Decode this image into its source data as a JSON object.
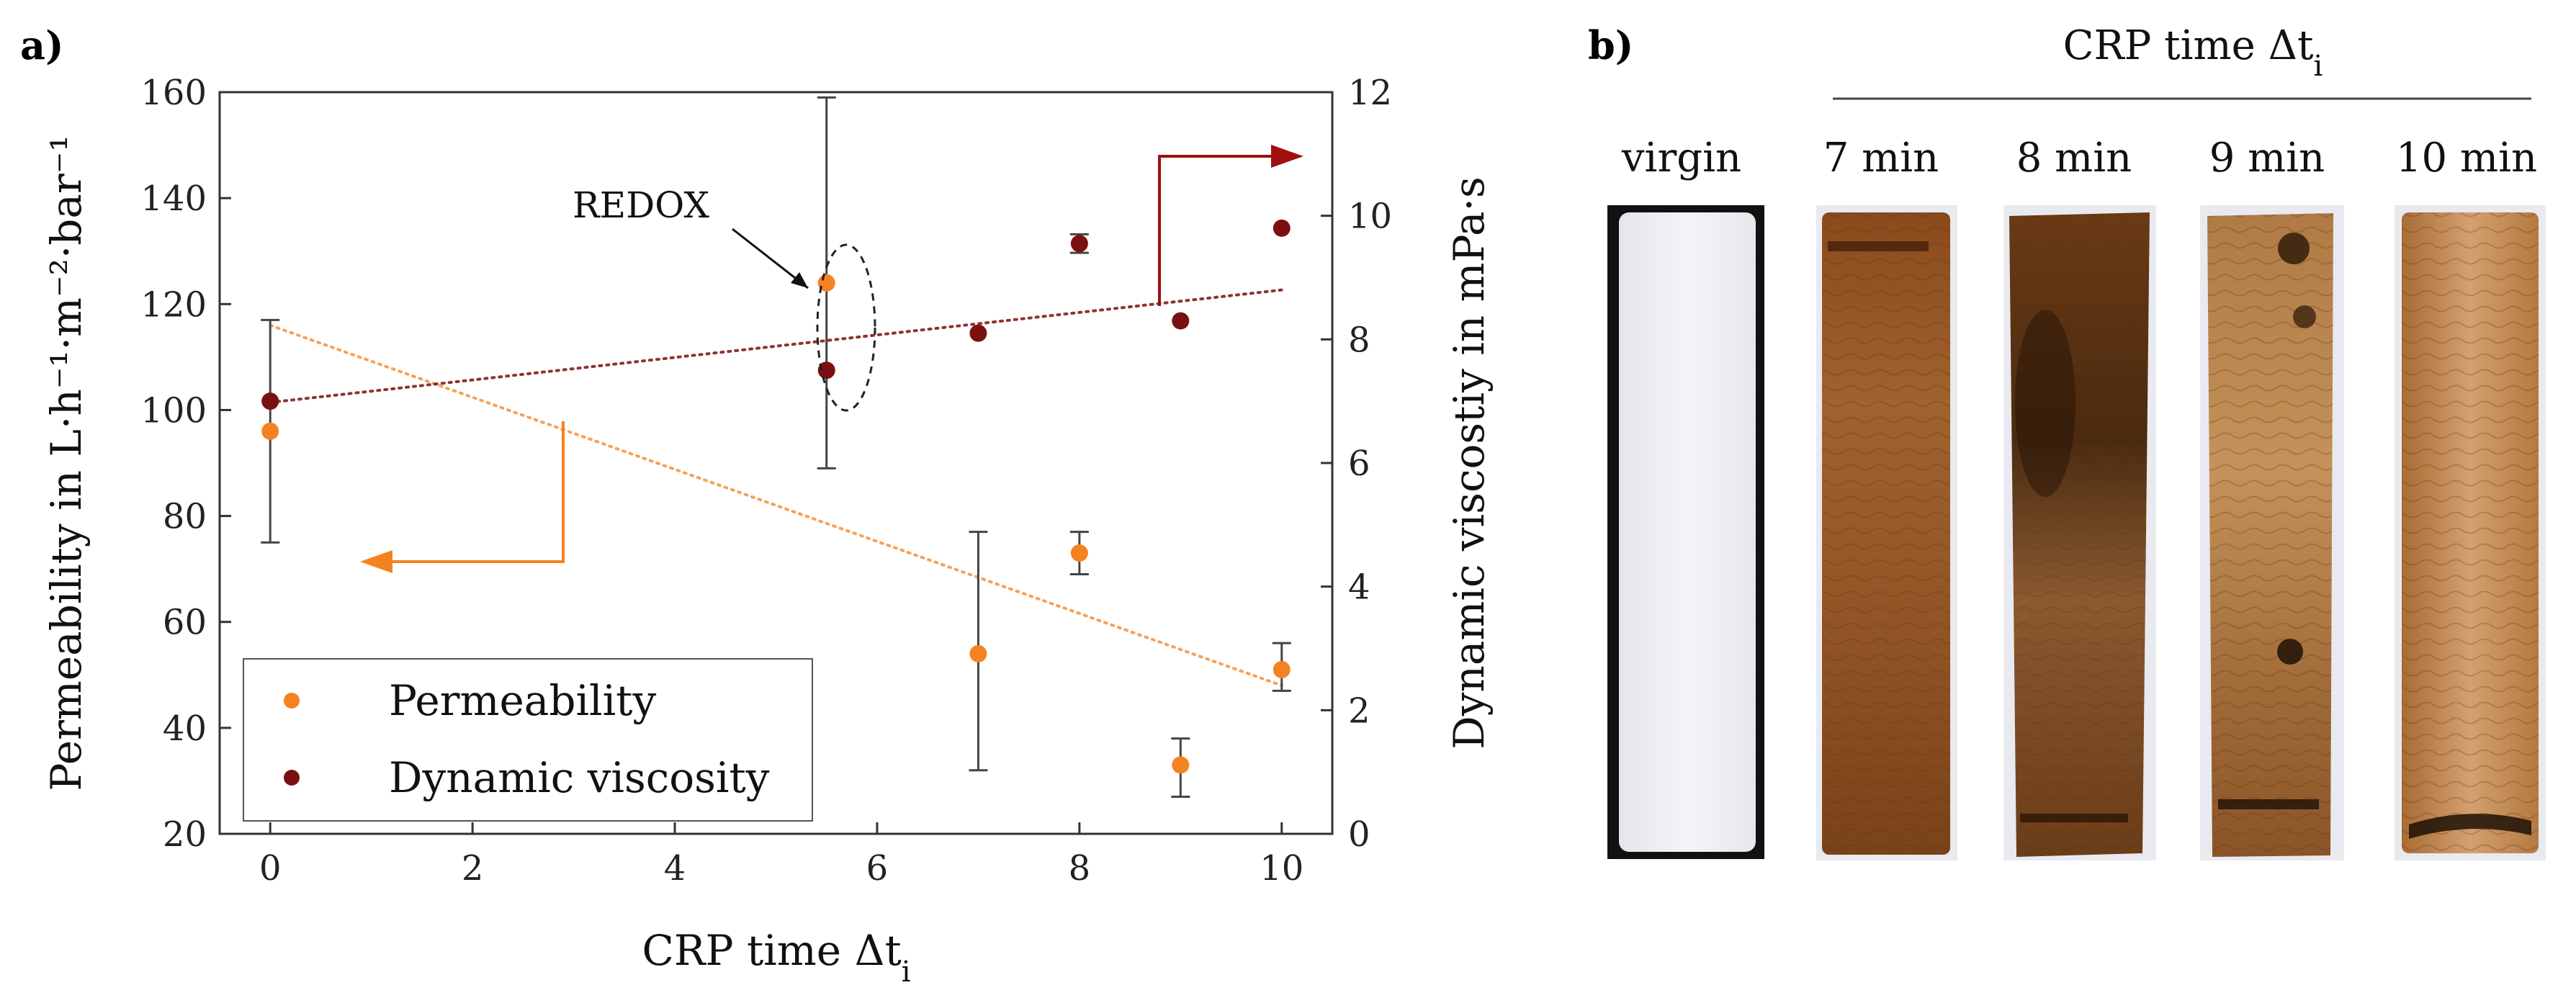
{
  "panel_a": {
    "label": "a)",
    "left_axis_title": "Permeability in L·h⁻¹·m⁻²·bar⁻¹",
    "right_axis_title": "Dynamic viscostiy in mPa·s",
    "x_axis_title_main": "CRP time Δt",
    "x_axis_title_sub": "i",
    "annotation": "REDOX",
    "legend": [
      "Permeability",
      "Dynamic viscosity"
    ]
  },
  "chart_data": {
    "type": "scatter",
    "title": "",
    "xlabel": "CRP time Δti",
    "ylabel_left": "Permeability in L·h⁻¹·m⁻²·bar⁻¹",
    "ylabel_right": "Dynamic viscostiy in mPa·s",
    "xlim": [
      -0.5,
      10.5
    ],
    "ylim_left": [
      20,
      160
    ],
    "ylim_right": [
      0,
      12
    ],
    "x_ticks": [
      0,
      2,
      4,
      6,
      8,
      10
    ],
    "y_left_ticks": [
      20,
      40,
      60,
      80,
      100,
      120,
      140,
      160
    ],
    "y_right_ticks": [
      0,
      2,
      4,
      6,
      8,
      10,
      12
    ],
    "series": [
      {
        "name": "Permeability",
        "axis": "left",
        "color": "#f58220",
        "points": [
          {
            "x": 0,
            "y": 96,
            "err_low": 75,
            "err_high": 117
          },
          {
            "x": 5.5,
            "y": 124,
            "err_low": 89,
            "err_high": 159
          },
          {
            "x": 7,
            "y": 54,
            "err_low": 32,
            "err_high": 77
          },
          {
            "x": 8,
            "y": 73,
            "err_low": 69,
            "err_high": 77
          },
          {
            "x": 9,
            "y": 33,
            "err_low": 27,
            "err_high": 38
          },
          {
            "x": 10,
            "y": 51,
            "err_low": 47,
            "err_high": 56
          }
        ],
        "trend": {
          "x1": 0,
          "y1": 116,
          "x2": 10,
          "y2": 48
        }
      },
      {
        "name": "Dynamic viscosity",
        "axis": "right",
        "color": "#7b1010",
        "points": [
          {
            "x": 0,
            "y": 7.0
          },
          {
            "x": 5.5,
            "y": 7.5
          },
          {
            "x": 7,
            "y": 8.1
          },
          {
            "x": 8,
            "y": 9.55,
            "err_low": 9.4,
            "err_high": 9.7
          },
          {
            "x": 9,
            "y": 8.3
          },
          {
            "x": 10,
            "y": 9.8
          }
        ],
        "trend": {
          "x1": 0,
          "y1": 6.98,
          "x2": 10,
          "y2": 8.8
        }
      }
    ],
    "grid": false,
    "legend_position": "bottom-left"
  },
  "panel_b": {
    "label": "b)",
    "header_main": "CRP time Δt",
    "header_sub": "i",
    "samples": [
      {
        "label": "virgin",
        "kind": "white"
      },
      {
        "label": "7 min",
        "kind": "brown-light"
      },
      {
        "label": "8 min",
        "kind": "brown-dark"
      },
      {
        "label": "9 min",
        "kind": "brown-spotty"
      },
      {
        "label": "10 min",
        "kind": "brown-glossy"
      }
    ]
  },
  "colors": {
    "permeability": "#f58220",
    "viscosity": "#7b1010",
    "arrow_orange": "#f58220",
    "arrow_red": "#a01010"
  }
}
